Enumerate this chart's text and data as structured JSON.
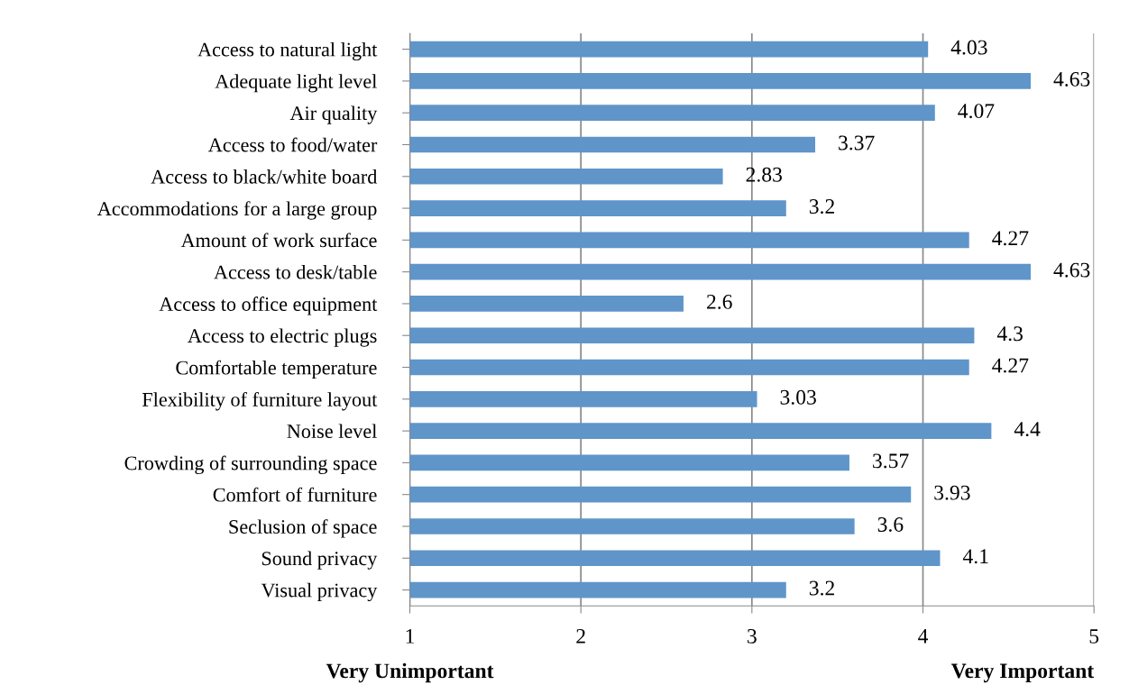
{
  "chart_data": {
    "type": "bar",
    "orientation": "horizontal",
    "categories": [
      "Access to natural light",
      "Adequate light level",
      "Air quality",
      "Access to food/water",
      "Access to black/white board",
      "Accommodations for a large group",
      "Amount of work surface",
      "Access to desk/table",
      "Access to office equipment",
      "Access to electric plugs",
      "Comfortable temperature",
      "Flexibility of furniture layout",
      "Noise level",
      "Crowding of surrounding space",
      "Comfort of furniture",
      "Seclusion of space",
      "Sound privacy",
      "Visual privacy"
    ],
    "values": [
      4.03,
      4.63,
      4.07,
      3.37,
      2.83,
      3.2,
      4.27,
      4.63,
      2.6,
      4.3,
      4.27,
      3.03,
      4.4,
      3.57,
      3.93,
      3.6,
      4.1,
      3.2
    ],
    "color": "#5f95c9",
    "xlim": [
      1,
      5
    ],
    "xticks": [
      1,
      2,
      3,
      4,
      5
    ],
    "grid": "x",
    "data_labels": true,
    "legend": false,
    "annotations": [
      "Very Unimportant",
      "Very Important"
    ]
  }
}
